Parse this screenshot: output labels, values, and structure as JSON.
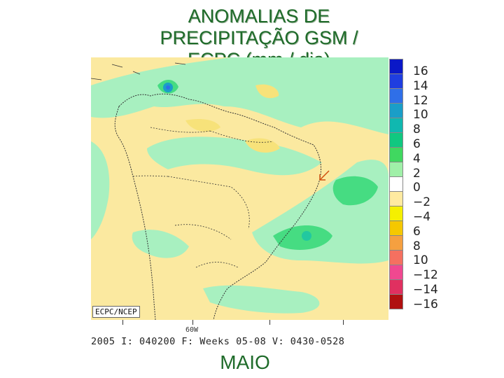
{
  "title": {
    "line1": "ANOMALIAS DE",
    "line2": "PRECIPITAÇÃO GSM /",
    "line3": "ECPC (mm / dia)"
  },
  "map": {
    "credit": "ECPC/NCEP",
    "longitude_label": "60W",
    "run_info": "2005 I: 040200 F: Weeks 05-08 V: 0430-0528",
    "region": "South America",
    "units": "mm / dia"
  },
  "legend": {
    "labels": [
      "16",
      "14",
      "12",
      "10",
      "8",
      "6",
      "4",
      "2",
      "0",
      "−2",
      "−4",
      "6",
      "8",
      "10",
      "−12",
      "−14",
      "−16"
    ],
    "colors": [
      "#0a18c8",
      "#1f3ee0",
      "#2f6fe8",
      "#1a9ec8",
      "#10b8b0",
      "#10c880",
      "#40d860",
      "#a0f0a8",
      "#ffffff",
      "#ffeaa0",
      "#f5f000",
      "#f5c800",
      "#f5a040",
      "#f57060",
      "#f04890",
      "#e03060",
      "#b01010"
    ]
  },
  "month_label": "MAIO",
  "colors": {
    "title_green": "#1f6b2a",
    "dry_yellow": "#fbe9a0",
    "wet_green": "#a8f0c0",
    "wet_strong": "#46dc82"
  }
}
